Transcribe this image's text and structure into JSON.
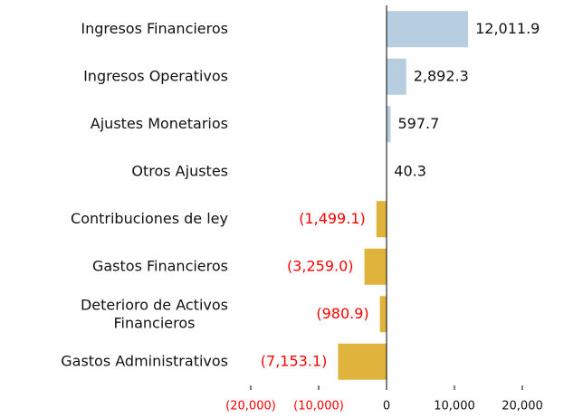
{
  "chart_data": {
    "type": "hbar",
    "categories": [
      "Ingresos Financieros",
      "Ingresos Operativos",
      "Ajustes Monetarios",
      "Otros Ajustes",
      "Contribuciones de ley",
      "Gastos Financieros",
      "Deterioro de Activos\nFinancieros",
      "Gastos Administrativos"
    ],
    "values": [
      12011.9,
      2892.3,
      597.7,
      40.3,
      -1499.1,
      -3259.0,
      -980.9,
      -7153.1
    ],
    "value_labels": [
      "12,011.9",
      "2,892.3",
      "597.7",
      "40.3",
      "(1,499.1)",
      "(3,259.0)",
      "(980.9)",
      "(7,153.1)"
    ],
    "positive_color": "#b7cde0",
    "negative_color": "#e0b43c",
    "negative_label_color": "#ff0000",
    "xlim": [
      -20000,
      20000
    ],
    "xticks": [
      {
        "value": -20000,
        "label": "(20,000)"
      },
      {
        "value": -10000,
        "label": "(10,000)"
      },
      0,
      {
        "value": 10000,
        "label": "10,000"
      },
      {
        "value": 20000,
        "label": "20,000"
      }
    ]
  }
}
